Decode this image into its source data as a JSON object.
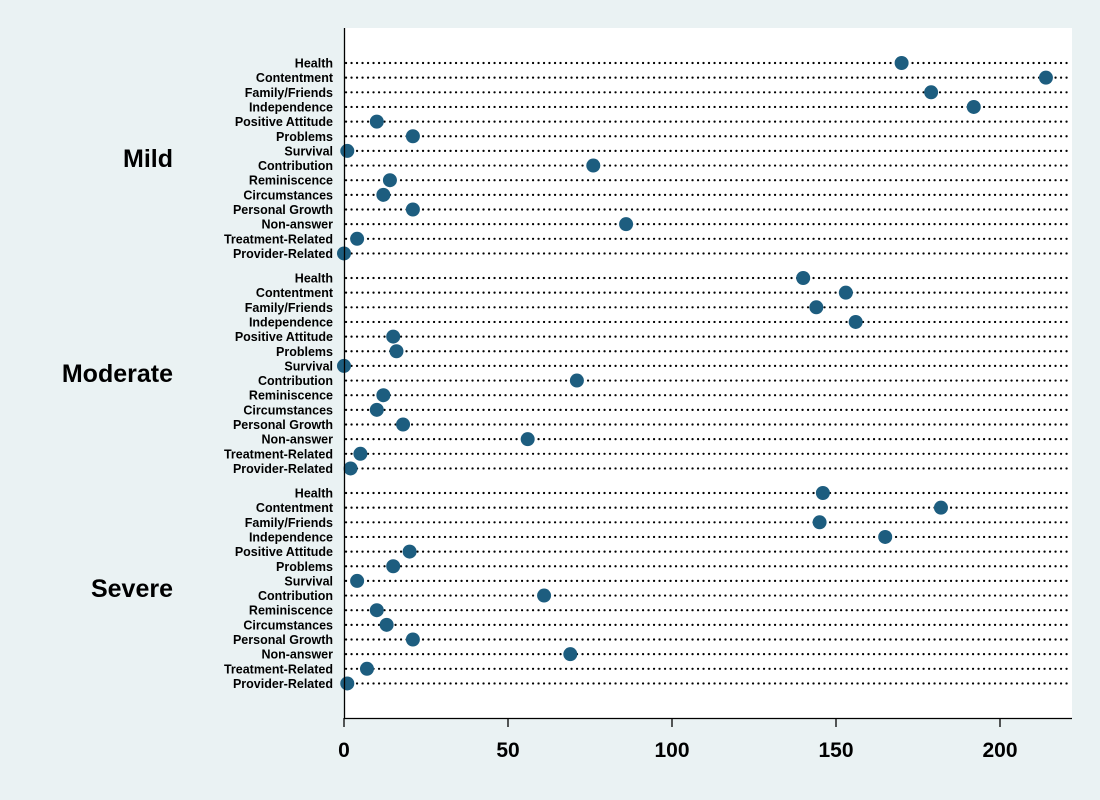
{
  "colors": {
    "background": "#eaf2f3",
    "plot_background": "#ffffff",
    "dot": "#1d5d7f",
    "guide": "#000000"
  },
  "chart_data": {
    "type": "scatter",
    "orientation": "horizontal-dot-plot",
    "title": "",
    "xlabel": "",
    "ylabel": "",
    "xlim": [
      0,
      220
    ],
    "xticks": [
      0,
      50,
      100,
      150,
      200
    ],
    "grid": false,
    "legend": "none",
    "dotted_guides": true,
    "categories": [
      "Health",
      "Contentment",
      "Family/Friends",
      "Independence",
      "Positive Attitude",
      "Problems",
      "Survival",
      "Contribution",
      "Reminiscence",
      "Circumstances",
      "Personal Growth",
      "Non-answer",
      "Treatment-Related",
      "Provider-Related"
    ],
    "groups": [
      {
        "name": "Mild",
        "values": [
          170,
          214,
          179,
          192,
          10,
          21,
          1,
          76,
          14,
          12,
          21,
          86,
          4,
          0
        ]
      },
      {
        "name": "Moderate",
        "values": [
          140,
          153,
          144,
          156,
          15,
          16,
          0,
          71,
          12,
          10,
          18,
          56,
          5,
          2
        ]
      },
      {
        "name": "Severe",
        "values": [
          146,
          182,
          145,
          165,
          20,
          15,
          4,
          61,
          10,
          13,
          21,
          69,
          7,
          1
        ]
      }
    ]
  }
}
